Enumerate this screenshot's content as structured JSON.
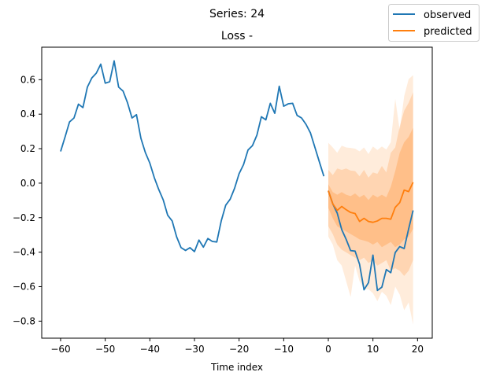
{
  "chart_data": {
    "type": "line",
    "title": "Series: 24",
    "subtitle": "Loss -",
    "xlabel": "Time index",
    "ylabel": "",
    "xlim": [
      -64,
      22
    ],
    "ylim": [
      -0.9,
      0.78
    ],
    "xticks": [
      -60,
      -50,
      -40,
      -30,
      -20,
      -10,
      0,
      10,
      20
    ],
    "xtick_labels": [
      "−60",
      "−50",
      "−40",
      "−30",
      "−20",
      "−10",
      "0",
      "10",
      "20"
    ],
    "yticks": [
      -0.8,
      -0.6,
      -0.4,
      -0.2,
      0.0,
      0.2,
      0.4,
      0.6
    ],
    "ytick_labels": [
      "−0.8",
      "−0.6",
      "−0.4",
      "−0.2",
      "0.0",
      "0.2",
      "0.4",
      "0.6"
    ],
    "grid": false,
    "legend": {
      "placement": "top-right",
      "entries": [
        "observed",
        "predicted"
      ]
    },
    "colors": {
      "observed": "#1f77b4",
      "predicted": "#ff7f0e",
      "band": "#ff7f0e"
    },
    "series": [
      {
        "name": "observed",
        "segments": [
          {
            "x": [
              -60,
              -59,
              -58,
              -57,
              -56,
              -55,
              -54,
              -53,
              -52,
              -51,
              -50,
              -49,
              -48,
              -47,
              -46,
              -45,
              -44,
              -43,
              -42,
              -41,
              -40,
              -39,
              -38,
              -37,
              -36,
              -35,
              -34,
              -33,
              -32,
              -31,
              -30,
              -29,
              -28,
              -27,
              -26,
              -25,
              -24,
              -23,
              -22,
              -21,
              -20,
              -19,
              -18,
              -17,
              -16,
              -15,
              -14,
              -13,
              -12,
              -11,
              -10,
              -9,
              -8,
              -7,
              -6,
              -5,
              -4,
              -3,
              -2,
              -1
            ],
            "y": [
              0.184,
              0.268,
              0.355,
              0.378,
              0.458,
              0.438,
              0.557,
              0.61,
              0.638,
              0.69,
              0.58,
              0.588,
              0.709,
              0.557,
              0.534,
              0.466,
              0.378,
              0.397,
              0.26,
              0.177,
              0.116,
              0.032,
              -0.037,
              -0.097,
              -0.186,
              -0.219,
              -0.311,
              -0.374,
              -0.39,
              -0.374,
              -0.397,
              -0.33,
              -0.371,
              -0.321,
              -0.338,
              -0.341,
              -0.219,
              -0.128,
              -0.093,
              -0.029,
              0.055,
              0.108,
              0.192,
              0.218,
              0.279,
              0.385,
              0.367,
              0.463,
              0.405,
              0.562,
              0.446,
              0.46,
              0.463,
              0.393,
              0.378,
              0.341,
              0.291,
              0.207,
              0.123,
              0.04
            ]
          },
          {
            "x": [
              0,
              1,
              2,
              3,
              4,
              5,
              6,
              7,
              8,
              9,
              10,
              11,
              12,
              13,
              14,
              15,
              16,
              17,
              18,
              19
            ],
            "y": [
              -0.044,
              -0.12,
              -0.174,
              -0.269,
              -0.326,
              -0.391,
              -0.394,
              -0.47,
              -0.618,
              -0.577,
              -0.417,
              -0.622,
              -0.603,
              -0.501,
              -0.519,
              -0.402,
              -0.368,
              -0.379,
              -0.265,
              -0.158
            ]
          }
        ]
      },
      {
        "name": "predicted",
        "x": [
          0,
          1,
          2,
          3,
          4,
          5,
          6,
          7,
          8,
          9,
          10,
          11,
          12,
          13,
          14,
          15,
          16,
          17,
          18,
          19
        ],
        "y": [
          -0.044,
          -0.12,
          -0.158,
          -0.135,
          -0.154,
          -0.17,
          -0.176,
          -0.222,
          -0.204,
          -0.222,
          -0.227,
          -0.219,
          -0.204,
          -0.204,
          -0.209,
          -0.14,
          -0.113,
          -0.04,
          -0.049,
          0.005
        ]
      }
    ],
    "bands": [
      {
        "opacity": 0.15,
        "upper": [
          0.234,
          0.207,
          0.176,
          0.217,
          0.207,
          0.204,
          0.2,
          0.184,
          0.207,
          0.169,
          0.213,
          0.192,
          0.213,
          0.195,
          0.237,
          0.489,
          0.306,
          0.504,
          0.603,
          0.626
        ],
        "lower": [
          -0.31,
          -0.356,
          -0.447,
          -0.478,
          -0.569,
          -0.66,
          -0.478,
          -0.569,
          -0.615,
          -0.615,
          -0.638,
          -0.684,
          -0.63,
          -0.653,
          -0.707,
          -0.6,
          -0.646,
          -0.737,
          -0.692,
          -0.82
        ]
      },
      {
        "opacity": 0.2,
        "upper": [
          0.077,
          0.047,
          0.085,
          0.077,
          0.085,
          0.073,
          0.07,
          0.04,
          0.077,
          0.032,
          0.062,
          0.054,
          0.1,
          0.062,
          0.176,
          0.207,
          0.329,
          0.42,
          0.466,
          0.527
        ],
        "lower": [
          -0.25,
          -0.295,
          -0.356,
          -0.386,
          -0.401,
          -0.417,
          -0.432,
          -0.447,
          -0.432,
          -0.463,
          -0.447,
          -0.478,
          -0.463,
          -0.447,
          -0.508,
          -0.493,
          -0.508,
          -0.538,
          -0.508,
          -0.447
        ]
      },
      {
        "opacity": 0.25,
        "upper": [
          -0.006,
          -0.052,
          -0.067,
          -0.052,
          -0.067,
          -0.075,
          -0.06,
          -0.082,
          -0.067,
          -0.098,
          -0.067,
          -0.082,
          -0.067,
          -0.082,
          -0.021,
          0.07,
          0.176,
          0.237,
          0.268,
          0.321
        ],
        "lower": [
          -0.143,
          -0.204,
          -0.25,
          -0.265,
          -0.28,
          -0.295,
          -0.31,
          -0.326,
          -0.333,
          -0.341,
          -0.356,
          -0.341,
          -0.371,
          -0.356,
          -0.341,
          -0.371,
          -0.356,
          -0.326,
          -0.31,
          -0.265
        ]
      }
    ]
  }
}
